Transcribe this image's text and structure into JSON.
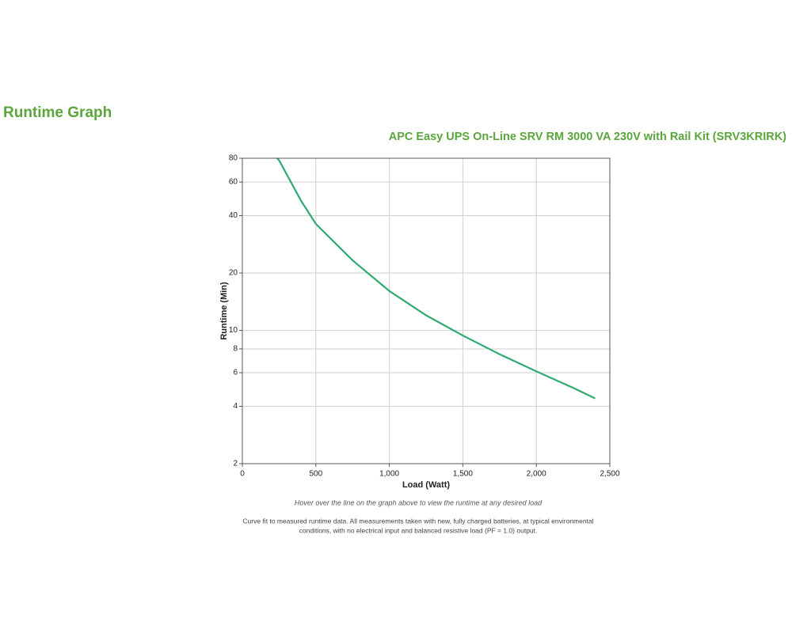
{
  "page_title": "Runtime Graph",
  "chart_data": {
    "type": "line",
    "title": "APC Easy UPS On-Line SRV RM 3000 VA 230V with Rail Kit (SRV3KRIRK)",
    "x_label": "Load (Watt)",
    "y_label": "Runtime (Min)",
    "x": [
      237,
      250,
      400,
      500,
      750,
      1000,
      1250,
      1500,
      1750,
      2000,
      2250,
      2400
    ],
    "series": [
      {
        "name": "Runtime",
        "color": "#2eaa6e",
        "values": [
          80,
          78,
          47.8,
          36.2,
          23.3,
          16.1,
          12.0,
          9.4,
          7.5,
          6.1,
          5.0,
          4.4
        ]
      }
    ],
    "xlim": [
      0,
      2500
    ],
    "xticks": [
      0,
      500,
      {
        "value": 1000,
        "label": "1,000"
      },
      {
        "value": 1500,
        "label": "1,500"
      },
      {
        "value": 2000,
        "label": "2,000"
      },
      {
        "value": 2500,
        "label": "2,500"
      }
    ],
    "ylim": [
      2,
      80
    ],
    "yticks": [
      2,
      4,
      6,
      8,
      10,
      20,
      40,
      60,
      80
    ],
    "y_log": true,
    "grid": true,
    "notes": [
      "Hover over the line on the graph above to view the runtime at any desired load",
      "Curve fit to measured runtime data. All measurements taken with new, fully charged batteries, at typical environmental",
      "conditions, with no electrical input and balanced resistive load (PF = 1.0) output."
    ]
  }
}
